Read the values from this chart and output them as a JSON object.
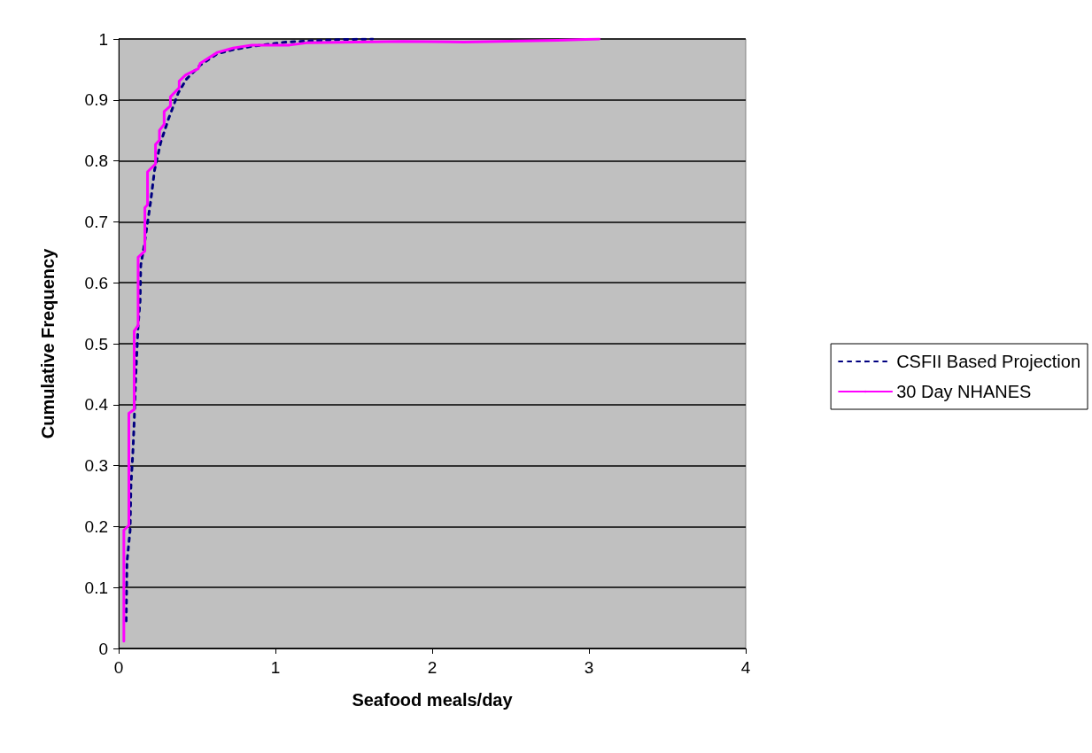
{
  "chart_data": {
    "type": "line",
    "xlabel": "Seafood meals/day",
    "ylabel": "Cumulative Frequency",
    "xlim": [
      0,
      4
    ],
    "xticks": [
      0,
      1,
      2,
      3,
      4
    ],
    "ylim": [
      0,
      1
    ],
    "yticks": [
      0,
      0.1,
      0.2,
      0.3,
      0.4,
      0.5,
      0.6,
      0.7,
      0.8,
      0.9,
      1
    ],
    "grid": "y",
    "legend": "right",
    "series": [
      {
        "name": "CSFII Based Projection",
        "color": "#000080",
        "line_style": "dashed",
        "x": [
          0.048,
          0.053,
          0.073,
          0.078,
          0.091,
          0.099,
          0.108,
          0.124,
          0.137,
          0.141,
          0.159,
          0.204,
          0.229,
          0.268,
          0.318,
          0.381,
          0.432,
          0.52,
          0.63,
          0.74,
          0.85,
          1.07,
          1.41,
          1.62
        ],
        "values": [
          0.045,
          0.142,
          0.194,
          0.265,
          0.324,
          0.372,
          0.441,
          0.529,
          0.571,
          0.629,
          0.655,
          0.733,
          0.785,
          0.83,
          0.869,
          0.912,
          0.934,
          0.957,
          0.976,
          0.983,
          0.988,
          0.995,
          0.999,
          1.0
        ]
      },
      {
        "name": "30 Day NHANES",
        "color": "#ff00ff",
        "line_style": "solid",
        "x": [
          0.033,
          0.033,
          0.065,
          0.065,
          0.099,
          0.099,
          0.124,
          0.124,
          0.167,
          0.167,
          0.184,
          0.184,
          0.235,
          0.235,
          0.26,
          0.26,
          0.29,
          0.29,
          0.33,
          0.33,
          0.386,
          0.386,
          0.427,
          0.507,
          0.52,
          0.63,
          0.73,
          0.85,
          1.09,
          1.21,
          1.81,
          2.2,
          2.8,
          3.065
        ],
        "values": [
          0.012,
          0.194,
          0.202,
          0.386,
          0.392,
          0.521,
          0.53,
          0.642,
          0.652,
          0.723,
          0.728,
          0.782,
          0.795,
          0.827,
          0.834,
          0.85,
          0.86,
          0.881,
          0.89,
          0.905,
          0.92,
          0.931,
          0.941,
          0.951,
          0.96,
          0.978,
          0.985,
          0.99,
          0.99,
          0.994,
          0.996,
          0.995,
          0.998,
          1.0
        ]
      }
    ]
  }
}
